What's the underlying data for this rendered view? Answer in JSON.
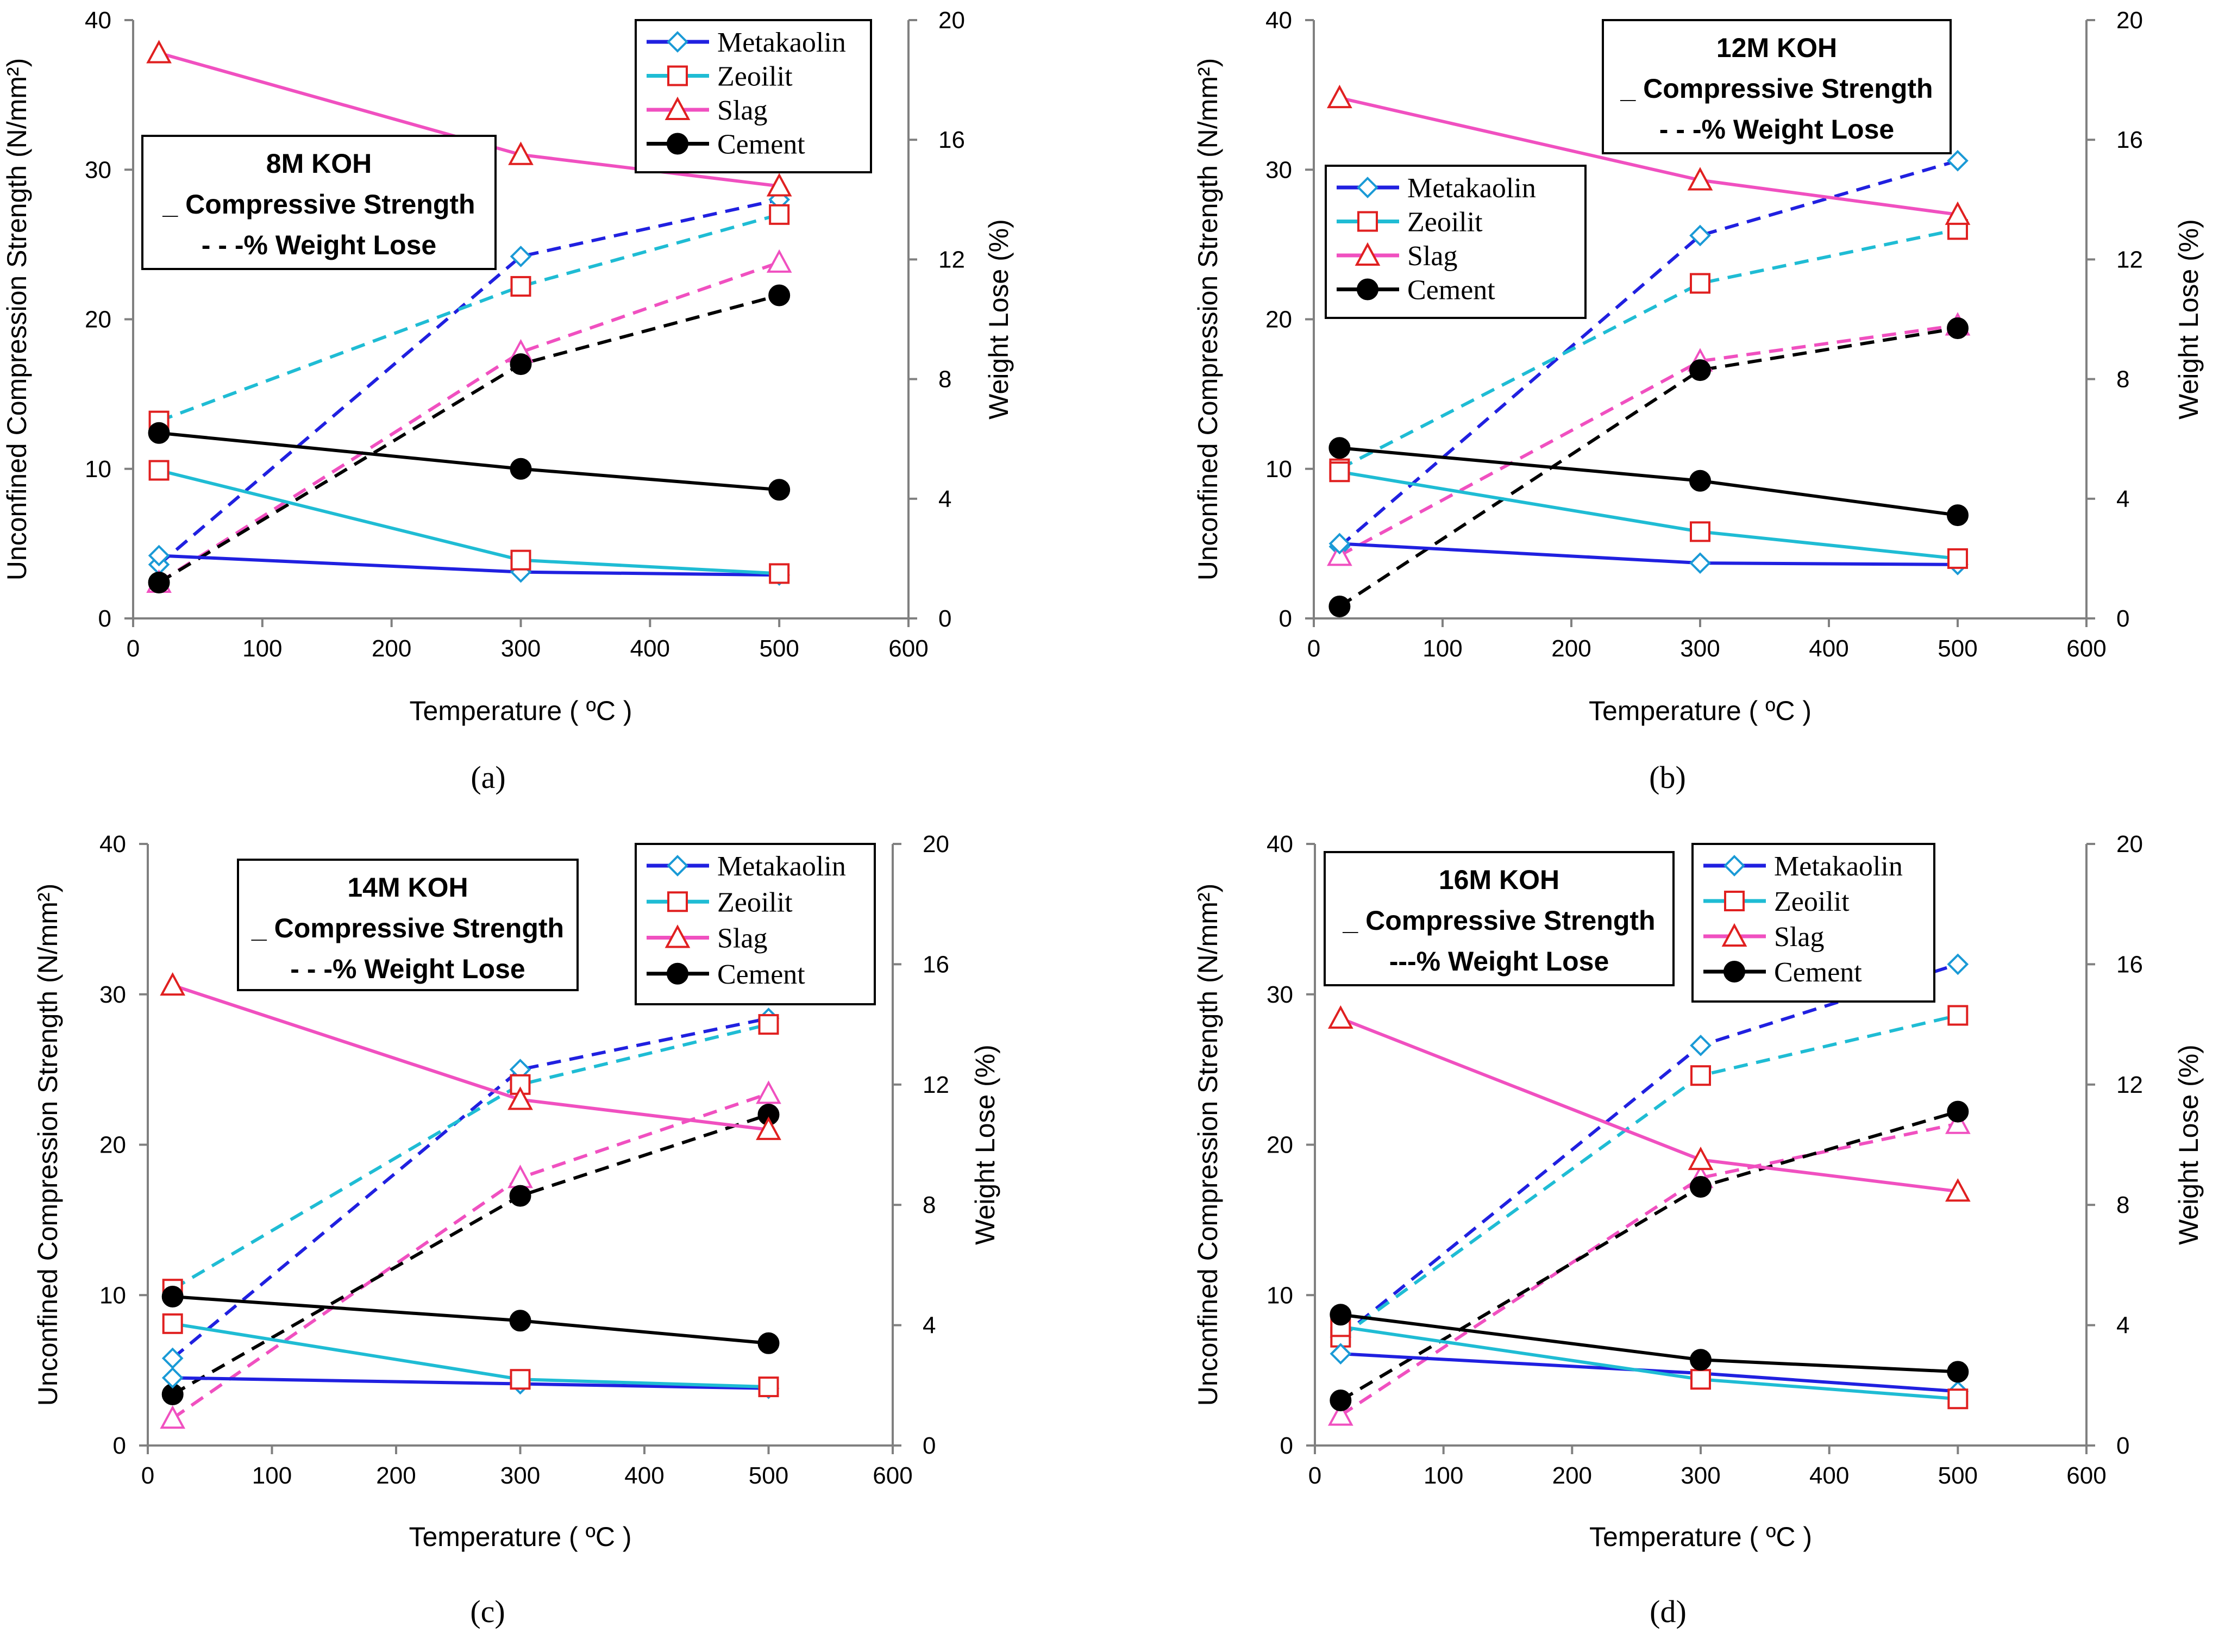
{
  "chart_data": [
    {
      "type": "line",
      "panel_label": "(a)",
      "box_title": "8M KOH",
      "box_line2": "_ Compressive Strength",
      "box_line3": "- - -% Weight Lose",
      "legend_position": "top-right",
      "strength_box_position": "top-left",
      "xlabel": "Temperature ( ºC )",
      "ylabel": "Unconfined Compression Strength (N/mm²)",
      "y2label": "Weight Lose (%)",
      "xlim": [
        0,
        600
      ],
      "ylim": [
        0,
        40
      ],
      "y2lim": [
        0,
        20
      ],
      "x_ticks": [
        "0",
        "100",
        "200",
        "300",
        "400",
        "500",
        "600"
      ],
      "y_ticks": [
        "0",
        "10",
        "20",
        "30",
        "40"
      ],
      "y2_ticks": [
        "0",
        "4",
        "8",
        "12",
        "16",
        "20"
      ],
      "x": [
        20,
        300,
        500
      ],
      "strength_series": [
        {
          "name": "Metakaolin",
          "values": [
            4.2,
            3.1,
            2.9
          ]
        },
        {
          "name": "Zeoilit",
          "values": [
            9.9,
            3.9,
            3.0
          ]
        },
        {
          "name": "Slag",
          "values": [
            37.8,
            31.0,
            28.9
          ]
        },
        {
          "name": "Cement",
          "values": [
            12.4,
            10.0,
            8.6
          ]
        }
      ],
      "weight_loss_series": [
        {
          "name": "Metakaolin",
          "values": [
            1.8,
            12.1,
            14.0
          ]
        },
        {
          "name": "Zeoilit",
          "values": [
            6.6,
            11.1,
            13.5
          ]
        },
        {
          "name": "Slag",
          "values": [
            1.2,
            8.9,
            11.9
          ]
        },
        {
          "name": "Cement",
          "values": [
            1.2,
            8.5,
            10.8
          ]
        }
      ]
    },
    {
      "type": "line",
      "panel_label": "(b)",
      "box_title": "12M KOH",
      "box_line2": "_ Compressive Strength",
      "box_line3": "- - -% Weight Lose",
      "legend_position": "left",
      "strength_box_position": "top-right",
      "xlabel": "Temperature ( ºC )",
      "ylabel": "Unconfined Compression Strength (N/mm²)",
      "y2label": "Weight Lose (%)",
      "xlim": [
        0,
        600
      ],
      "ylim": [
        0,
        40
      ],
      "y2lim": [
        0,
        20
      ],
      "x_ticks": [
        "0",
        "100",
        "200",
        "300",
        "400",
        "500",
        "600"
      ],
      "y_ticks": [
        "0",
        "10",
        "20",
        "30",
        "40"
      ],
      "y2_ticks": [
        "0",
        "4",
        "8",
        "12",
        "16",
        "20"
      ],
      "x": [
        20,
        300,
        500
      ],
      "strength_series": [
        {
          "name": "Metakaolin",
          "values": [
            5.0,
            3.7,
            3.6
          ]
        },
        {
          "name": "Zeoilit",
          "values": [
            9.8,
            5.8,
            4.0
          ]
        },
        {
          "name": "Slag",
          "values": [
            34.8,
            29.3,
            27.0
          ]
        },
        {
          "name": "Cement",
          "values": [
            11.4,
            9.2,
            6.9
          ]
        }
      ],
      "weight_loss_series": [
        {
          "name": "Metakaolin",
          "values": [
            2.4,
            12.8,
            15.3
          ]
        },
        {
          "name": "Zeoilit",
          "values": [
            5.0,
            11.2,
            13.0
          ]
        },
        {
          "name": "Slag",
          "values": [
            2.1,
            8.6,
            9.8
          ]
        },
        {
          "name": "Cement",
          "values": [
            0.4,
            8.3,
            9.7
          ]
        }
      ]
    },
    {
      "type": "line",
      "panel_label": "(c)",
      "box_title": "14M KOH",
      "box_line2": "_ Compressive Strength",
      "box_line3": "- - -% Weight Lose",
      "legend_position": "top-right",
      "strength_box_position": "top-center",
      "xlabel": "Temperature ( ºC )",
      "ylabel": "Unconfined Compression Strength (N/mm²)",
      "y2label": "Weight Lose (%)",
      "xlim": [
        0,
        600
      ],
      "ylim": [
        0,
        40
      ],
      "y2lim": [
        0,
        20
      ],
      "x_ticks": [
        "0",
        "100",
        "200",
        "300",
        "400",
        "500",
        "600"
      ],
      "y_ticks": [
        "0",
        "10",
        "20",
        "30",
        "40"
      ],
      "y2_ticks": [
        "0",
        "4",
        "8",
        "12",
        "16",
        "20"
      ],
      "x": [
        20,
        300,
        500
      ],
      "strength_series": [
        {
          "name": "Metakaolin",
          "values": [
            4.5,
            4.1,
            3.8
          ]
        },
        {
          "name": "Zeoilit",
          "values": [
            8.1,
            4.4,
            3.9
          ]
        },
        {
          "name": "Slag",
          "values": [
            30.6,
            23.0,
            21.0
          ]
        },
        {
          "name": "Cement",
          "values": [
            9.9,
            8.3,
            6.8
          ]
        }
      ],
      "weight_loss_series": [
        {
          "name": "Metakaolin",
          "values": [
            2.9,
            12.5,
            14.2
          ]
        },
        {
          "name": "Zeoilit",
          "values": [
            5.2,
            12.0,
            14.0
          ]
        },
        {
          "name": "Slag",
          "values": [
            0.9,
            8.9,
            11.7
          ]
        },
        {
          "name": "Cement",
          "values": [
            1.7,
            8.3,
            11.0
          ]
        }
      ]
    },
    {
      "type": "line",
      "panel_label": "(d)",
      "box_title": "16M KOH",
      "box_line2": "_ Compressive Strength",
      "box_line3": "---% Weight Lose",
      "legend_position": "top-right",
      "strength_box_position": "top-left",
      "xlabel": "Temperature ( ºC )",
      "ylabel": "Unconfined Compression Strength (N/mm²)",
      "y2label": "Weight Lose (%)",
      "xlim": [
        0,
        600
      ],
      "ylim": [
        0,
        40
      ],
      "y2lim": [
        0,
        20
      ],
      "x_ticks": [
        "0",
        "100",
        "200",
        "300",
        "400",
        "500",
        "600"
      ],
      "y_ticks": [
        "0",
        "10",
        "20",
        "30",
        "40"
      ],
      "y2_ticks": [
        "0",
        "4",
        "8",
        "12",
        "16",
        "20"
      ],
      "x": [
        20,
        300,
        500
      ],
      "strength_series": [
        {
          "name": "Metakaolin",
          "values": [
            6.1,
            4.8,
            3.6
          ]
        },
        {
          "name": "Zeoilit",
          "values": [
            7.9,
            4.4,
            3.1
          ]
        },
        {
          "name": "Slag",
          "values": [
            28.4,
            19.0,
            16.9
          ]
        },
        {
          "name": "Cement",
          "values": [
            8.7,
            5.7,
            4.9
          ]
        }
      ],
      "weight_loss_series": [
        {
          "name": "Metakaolin",
          "values": [
            3.6,
            13.3,
            16.0
          ]
        },
        {
          "name": "Zeoilit",
          "values": [
            3.6,
            12.3,
            14.3
          ]
        },
        {
          "name": "Slag",
          "values": [
            1.0,
            8.9,
            10.7
          ]
        },
        {
          "name": "Cement",
          "values": [
            1.5,
            8.6,
            11.1
          ]
        }
      ]
    }
  ],
  "styles": {
    "Metakaolin": {
      "color": "#2020e0",
      "marker_color": "#1a9ad6",
      "marker": "diamond"
    },
    "Zeoilit": {
      "color": "#1fbcd4",
      "marker_color": "#e02020",
      "marker": "square"
    },
    "Slag": {
      "color": "#f050c0",
      "marker_color": "#e02020",
      "marker": "triangle"
    },
    "Cement": {
      "color": "#000000",
      "marker_color": "#000000",
      "marker": "circle"
    }
  }
}
